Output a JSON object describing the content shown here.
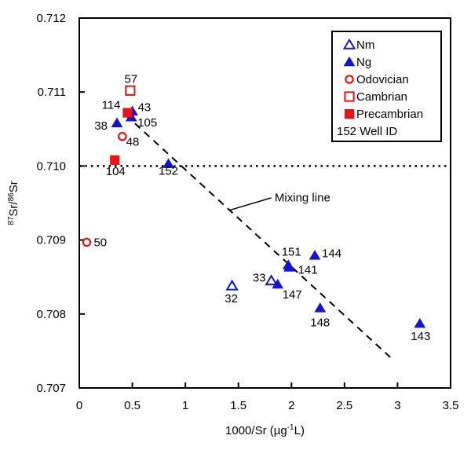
{
  "chart_data": {
    "type": "scatter",
    "title": "",
    "xlabel": {
      "text": "1000/Sr (µg-1L)",
      "pre": "1000/Sr (µg",
      "sup": "-1",
      "post": "L)"
    },
    "ylabel": {
      "text": "87Sr/86Sr",
      "sup1": "87",
      "mid": "Sr/",
      "sup2": "86",
      "post": "Sr"
    },
    "xlim": [
      0,
      3.5
    ],
    "ylim": [
      0.707,
      0.712
    ],
    "x_ticks": [
      0,
      0.5,
      1,
      1.5,
      2,
      2.5,
      3,
      3.5
    ],
    "x_tick_labels": [
      "0",
      "0.5",
      "1",
      "1.5",
      "2",
      "2.5",
      "3",
      "3.5"
    ],
    "y_ticks": [
      0.707,
      0.708,
      0.709,
      0.71,
      0.711,
      0.712
    ],
    "y_tick_labels": [
      "0.707",
      "0.708",
      "0.709",
      "0.710",
      "0.711",
      "0.712"
    ],
    "grid": false,
    "colors": {
      "blue": "#1414d6",
      "red": "#ee1111",
      "axis": "#000000",
      "background": "#ffffff"
    },
    "series": [
      {
        "name": "Nm",
        "marker": "triangle",
        "fill": "open",
        "color": "blue",
        "points": [
          {
            "id": "32",
            "x": 1.44,
            "y": 0.70838,
            "label": {
              "dx": -1,
              "dy": 21,
              "anchor": "middle"
            }
          },
          {
            "id": "33",
            "x": 1.81,
            "y": 0.70845,
            "label": {
              "dx": -7,
              "dy": 1,
              "anchor": "end"
            }
          }
        ]
      },
      {
        "name": "Ng",
        "marker": "triangle",
        "fill": "solid",
        "color": "blue",
        "points": [
          {
            "id": "43",
            "x": 0.5,
            "y": 0.71074,
            "label": {
              "dx": 7,
              "dy": 0,
              "anchor": "start"
            }
          },
          {
            "id": "105",
            "x": 0.49,
            "y": 0.71066,
            "label": {
              "dx": 8,
              "dy": 12,
              "anchor": "start"
            }
          },
          {
            "id": "38",
            "x": 0.355,
            "y": 0.71058,
            "label": {
              "dx": -12,
              "dy": 8,
              "anchor": "end"
            }
          },
          {
            "id": "152",
            "x": 0.84,
            "y": 0.71003,
            "label": {
              "dx": 0,
              "dy": 14,
              "anchor": "middle"
            }
          },
          {
            "id": "151",
            "x": 1.97,
            "y": 0.70866,
            "label": {
              "dx": 4,
              "dy": -12,
              "anchor": "middle"
            }
          },
          {
            "id": "141",
            "x": 1.98,
            "y": 0.70863,
            "label": {
              "dx": 11,
              "dy": 8,
              "anchor": "start"
            }
          },
          {
            "id": "144",
            "x": 2.22,
            "y": 0.70879,
            "label": {
              "dx": 9,
              "dy": 2,
              "anchor": "start"
            }
          },
          {
            "id": "147",
            "x": 1.87,
            "y": 0.7084,
            "label": {
              "dx": 6,
              "dy": 18,
              "anchor": "start"
            }
          },
          {
            "id": "148",
            "x": 2.27,
            "y": 0.70808,
            "label": {
              "dx": 0,
              "dy": 23,
              "anchor": "middle"
            }
          },
          {
            "id": "143",
            "x": 3.21,
            "y": 0.70787,
            "label": {
              "dx": 1,
              "dy": 21,
              "anchor": "middle"
            }
          }
        ]
      },
      {
        "name": "Odovician",
        "marker": "circle",
        "fill": "open",
        "color": "red",
        "points": [
          {
            "id": "48",
            "x": 0.405,
            "y": 0.7104,
            "label": {
              "dx": 5,
              "dy": 12,
              "anchor": "start"
            }
          },
          {
            "id": "50",
            "x": 0.07,
            "y": 0.70897,
            "label": {
              "dx": 9,
              "dy": 5,
              "anchor": "start"
            }
          }
        ]
      },
      {
        "name": "Cambrian",
        "marker": "square",
        "fill": "open",
        "color": "red",
        "points": [
          {
            "id": "57",
            "x": 0.48,
            "y": 0.71102,
            "label": {
              "dx": 1,
              "dy": -10,
              "anchor": "middle"
            }
          }
        ]
      },
      {
        "name": "Precambrian",
        "marker": "square",
        "fill": "solid",
        "color": "red",
        "points": [
          {
            "id": "114",
            "x": 0.455,
            "y": 0.71072,
            "label": {
              "dx": -9,
              "dy": -5,
              "anchor": "end"
            }
          },
          {
            "id": "104",
            "x": 0.335,
            "y": 0.71008,
            "label": {
              "dx": 1,
              "dy": 19,
              "anchor": "middle"
            }
          }
        ]
      }
    ],
    "reference_line": {
      "y": 0.71,
      "style": "dotted"
    },
    "mixing_line": {
      "x1": 0.437,
      "y1": 0.71069,
      "x2": 2.966,
      "y2": 0.70737,
      "style": "dashed"
    },
    "annotation": {
      "text": "Mixing line",
      "text_x": 1.842,
      "text_y": 0.70952,
      "leader": {
        "x1": 1.41,
        "y1": 0.7094,
        "x2": 1.81,
        "y2": 0.70957
      }
    },
    "legend": {
      "position": "top-right",
      "entries": [
        {
          "label": "Nm",
          "marker": "triangle",
          "fill": "open",
          "color": "blue"
        },
        {
          "label": "Ng",
          "marker": "triangle",
          "fill": "solid",
          "color": "blue"
        },
        {
          "label": "Odovician",
          "marker": "circle",
          "fill": "open",
          "color": "red"
        },
        {
          "label": "Cambrian",
          "marker": "square",
          "fill": "open",
          "color": "red"
        },
        {
          "label": "Precambrian",
          "marker": "square",
          "fill": "solid",
          "color": "red"
        },
        {
          "label": "152 Well ID",
          "marker": "none"
        }
      ]
    }
  }
}
